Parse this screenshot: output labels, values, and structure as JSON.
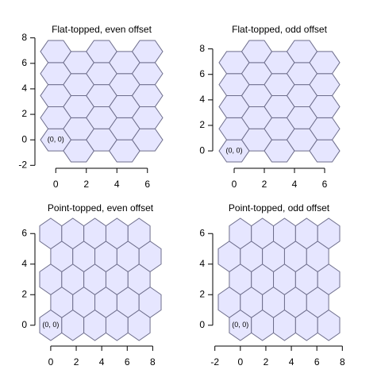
{
  "chart_data": [
    {
      "type": "hexgrid",
      "title": "Flat-topped, even offset",
      "orientation": "flat",
      "hex_radius": 1,
      "color": "#e6e6ff",
      "edge_color": "#6e6e8c",
      "annotation": "(0, 0)",
      "x": [
        0,
        0,
        0,
        0,
        0,
        1.5,
        1.5,
        1.5,
        1.5,
        1.5,
        3,
        3,
        3,
        3,
        3,
        4.5,
        4.5,
        4.5,
        4.5,
        4.5,
        6,
        6,
        6,
        6,
        6
      ],
      "y": [
        0,
        1.732,
        3.464,
        5.196,
        6.928,
        -0.866,
        0.866,
        2.598,
        4.33,
        6.062,
        0,
        1.732,
        3.464,
        5.196,
        6.928,
        -0.866,
        0.866,
        2.598,
        4.33,
        6.062,
        0,
        1.732,
        3.464,
        5.196,
        6.928
      ],
      "xlim": [
        -1,
        7
      ],
      "ylim": [
        -1.732,
        7.794
      ],
      "xticks": [
        0,
        2,
        4,
        6
      ],
      "yticks": [
        -2,
        0,
        2,
        4,
        6,
        8
      ]
    },
    {
      "type": "hexgrid",
      "title": "Flat-topped, odd offset",
      "orientation": "flat",
      "hex_radius": 1,
      "color": "#e6e6ff",
      "edge_color": "#6e6e8c",
      "annotation": "(0, 0)",
      "x": [
        0,
        0,
        0,
        0,
        0,
        1.5,
        1.5,
        1.5,
        1.5,
        1.5,
        3,
        3,
        3,
        3,
        3,
        4.5,
        4.5,
        4.5,
        4.5,
        4.5,
        6,
        6,
        6,
        6,
        6
      ],
      "y": [
        0,
        1.732,
        3.464,
        5.196,
        6.928,
        0.866,
        2.598,
        4.33,
        6.062,
        7.794,
        0,
        1.732,
        3.464,
        5.196,
        6.928,
        0.866,
        2.598,
        4.33,
        6.062,
        7.794,
        0,
        1.732,
        3.464,
        5.196,
        6.928
      ],
      "xlim": [
        -1,
        7
      ],
      "ylim": [
        -0.866,
        8.66
      ],
      "xticks": [
        0,
        2,
        4,
        6
      ],
      "yticks": [
        0,
        2,
        4,
        6,
        8
      ]
    },
    {
      "type": "hexgrid",
      "title": "Point-topped, even offset",
      "orientation": "pointy",
      "hex_radius": 1,
      "color": "#e6e6ff",
      "edge_color": "#6e6e8c",
      "annotation": "(0, 0)",
      "x": [
        0,
        1.732,
        3.464,
        5.196,
        6.928,
        0.866,
        2.598,
        4.33,
        6.062,
        7.794,
        0,
        1.732,
        3.464,
        5.196,
        6.928,
        0.866,
        2.598,
        4.33,
        6.062,
        7.794,
        0,
        1.732,
        3.464,
        5.196,
        6.928
      ],
      "y": [
        0,
        0,
        0,
        0,
        0,
        1.5,
        1.5,
        1.5,
        1.5,
        1.5,
        3,
        3,
        3,
        3,
        3,
        4.5,
        4.5,
        4.5,
        4.5,
        4.5,
        6,
        6,
        6,
        6,
        6
      ],
      "xlim": [
        -0.866,
        8.66
      ],
      "ylim": [
        -1,
        7
      ],
      "xticks": [
        0,
        2,
        4,
        6,
        8
      ],
      "yticks": [
        0,
        2,
        4,
        6
      ]
    },
    {
      "type": "hexgrid",
      "title": "Point-topped, odd offset",
      "orientation": "pointy",
      "hex_radius": 1,
      "color": "#e6e6ff",
      "edge_color": "#6e6e8c",
      "annotation": "(0, 0)",
      "x": [
        0,
        1.732,
        3.464,
        5.196,
        6.928,
        -0.866,
        0.866,
        2.598,
        4.33,
        6.062,
        0,
        1.732,
        3.464,
        5.196,
        6.928,
        -0.866,
        0.866,
        2.598,
        4.33,
        6.062,
        0,
        1.732,
        3.464,
        5.196,
        6.928
      ],
      "y": [
        0,
        0,
        0,
        0,
        0,
        1.5,
        1.5,
        1.5,
        1.5,
        1.5,
        3,
        3,
        3,
        3,
        3,
        4.5,
        4.5,
        4.5,
        4.5,
        4.5,
        6,
        6,
        6,
        6,
        6
      ],
      "xlim": [
        -1.732,
        7.794
      ],
      "ylim": [
        -1,
        7
      ],
      "xticks": [
        -2,
        0,
        2,
        4,
        6,
        8
      ],
      "yticks": [
        0,
        2,
        4,
        6
      ]
    }
  ]
}
